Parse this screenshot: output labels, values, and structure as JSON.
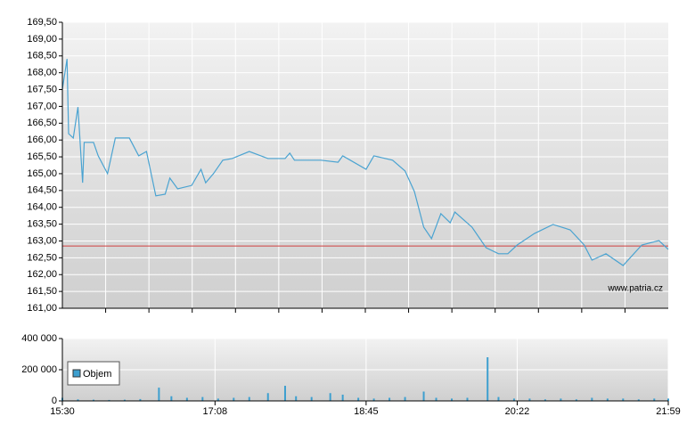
{
  "chart_data": [
    {
      "type": "line",
      "color": "#4aa3d1",
      "x": [
        "15:30",
        "15:33",
        "15:34",
        "15:37",
        "15:40",
        "15:43",
        "15:44",
        "15:50",
        "15:53",
        "15:59",
        "16:04",
        "16:13",
        "16:19",
        "16:24",
        "16:30",
        "16:36",
        "16:39",
        "16:44",
        "16:53",
        "16:59",
        "17:02",
        "17:07",
        "17:13",
        "17:19",
        "17:30",
        "17:42",
        "17:53",
        "17:56",
        "17:59",
        "18:16",
        "18:27",
        "18:30",
        "18:45",
        "18:50",
        "19:02",
        "19:10",
        "19:16",
        "19:22",
        "19:27",
        "19:33",
        "19:39",
        "19:42",
        "19:53",
        "20:02",
        "20:10",
        "20:16",
        "20:22",
        "20:33",
        "20:45",
        "20:56",
        "21:05",
        "21:10",
        "21:19",
        "21:30",
        "21:42",
        "21:53",
        "21:59"
      ],
      "values": [
        167.51,
        168.41,
        166.19,
        166.06,
        166.98,
        164.73,
        165.93,
        165.93,
        165.53,
        165.0,
        166.06,
        166.06,
        165.53,
        165.66,
        164.34,
        164.39,
        164.87,
        164.55,
        164.65,
        165.13,
        164.73,
        165.0,
        165.4,
        165.45,
        165.66,
        165.45,
        165.45,
        165.61,
        165.4,
        165.4,
        165.34,
        165.53,
        165.13,
        165.53,
        165.4,
        165.08,
        164.47,
        163.41,
        163.07,
        163.81,
        163.54,
        163.86,
        163.41,
        162.8,
        162.62,
        162.62,
        162.88,
        163.22,
        163.49,
        163.33,
        162.88,
        162.43,
        162.62,
        162.27,
        162.88,
        163.01,
        162.75
      ],
      "xlim": [
        "15:30",
        "21:59"
      ],
      "ylim": [
        161,
        169.5
      ],
      "yticks": [
        {
          "value": 161,
          "label": "161,00"
        },
        {
          "value": 161.5,
          "label": "161,50"
        },
        {
          "value": 162,
          "label": "162,00"
        },
        {
          "value": 162.5,
          "label": "162,50"
        },
        {
          "value": 163,
          "label": "163,00"
        },
        {
          "value": 163.5,
          "label": "163,50"
        },
        {
          "value": 164,
          "label": "164,00"
        },
        {
          "value": 164.5,
          "label": "164,50"
        },
        {
          "value": 165,
          "label": "165,00"
        },
        {
          "value": 165.5,
          "label": "165,50"
        },
        {
          "value": 166,
          "label": "166,00"
        },
        {
          "value": 166.5,
          "label": "166,50"
        },
        {
          "value": 167,
          "label": "167,00"
        },
        {
          "value": 167.5,
          "label": "167,50"
        },
        {
          "value": 168,
          "label": "168,00"
        },
        {
          "value": 168.5,
          "label": "168,50"
        },
        {
          "value": 169,
          "label": "169,00"
        },
        {
          "value": 169.5,
          "label": "169,50"
        }
      ],
      "reference_line": 162.85,
      "reference_color": "#d04040",
      "annotation": "www.patria.cz",
      "grid": true
    },
    {
      "type": "bar",
      "x": [
        "15:30",
        "15:40",
        "15:50",
        "16:00",
        "16:10",
        "16:20",
        "16:32",
        "16:40",
        "16:50",
        "17:00",
        "17:10",
        "17:20",
        "17:30",
        "17:42",
        "17:53",
        "18:00",
        "18:10",
        "18:22",
        "18:30",
        "18:40",
        "18:50",
        "19:00",
        "19:10",
        "19:22",
        "19:30",
        "19:40",
        "19:50",
        "20:03",
        "20:10",
        "20:20",
        "20:30",
        "20:40",
        "20:50",
        "21:00",
        "21:10",
        "21:20",
        "21:30",
        "21:40",
        "21:50",
        "21:59"
      ],
      "series": [
        {
          "name": "Objem",
          "color": "#3d9fcf",
          "values": [
            20000,
            10000,
            8000,
            6000,
            8000,
            12000,
            85000,
            30000,
            20000,
            25000,
            15000,
            20000,
            25000,
            50000,
            97000,
            30000,
            25000,
            50000,
            40000,
            20000,
            15000,
            20000,
            25000,
            60000,
            20000,
            15000,
            20000,
            280000,
            25000,
            15000,
            15000,
            10000,
            15000,
            10000,
            20000,
            15000,
            15000,
            10000,
            15000,
            15000
          ]
        }
      ],
      "xlim": [
        "15:30",
        "21:59"
      ],
      "xticks": [
        "15:30",
        "17:08",
        "18:45",
        "20:22",
        "21:59"
      ],
      "ylim": [
        0,
        400000
      ],
      "yticks": [
        0,
        {
          "value": 200000,
          "label": "200 000"
        },
        {
          "value": 400000,
          "label": "400 000"
        }
      ],
      "grid": true
    }
  ]
}
